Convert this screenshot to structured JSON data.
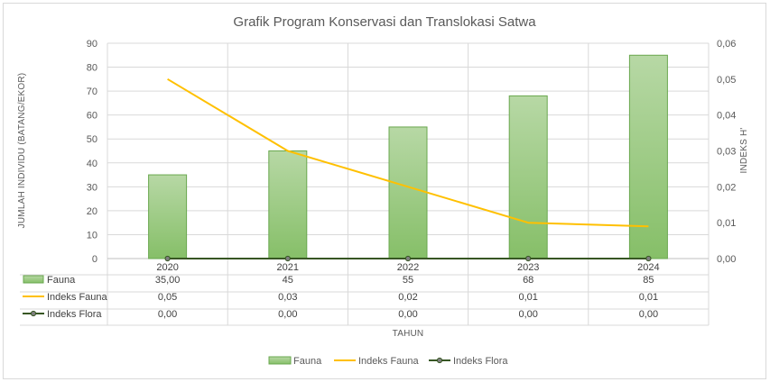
{
  "chart_data": {
    "type": "bar",
    "title": "Grafik Program Konservasi dan Translokasi Satwa",
    "xlabel": "TAHUN",
    "ylabel": "JUMLAH INDIVIDU (BATANG/EKOR)",
    "y2label": "INDEKS H'",
    "categories": [
      "2020",
      "2021",
      "2022",
      "2023",
      "2024"
    ],
    "ylim": [
      0,
      90
    ],
    "y_ticks": [
      "0",
      "10",
      "20",
      "30",
      "40",
      "50",
      "60",
      "70",
      "80",
      "90"
    ],
    "y2lim": [
      0,
      0.06
    ],
    "y2_ticks": [
      "0,00",
      "0,01",
      "0,02",
      "0,03",
      "0,04",
      "0,05",
      "0,06"
    ],
    "grid": true,
    "legend_position": "bottom",
    "series": [
      {
        "name": "Fauna",
        "kind": "bar",
        "axis": "left",
        "color": "#92c47c",
        "values": [
          35,
          45,
          55,
          68,
          85
        ],
        "table_labels": [
          "35,00",
          "45",
          "55",
          "68",
          "85"
        ]
      },
      {
        "name": "Indeks Fauna",
        "kind": "line",
        "axis": "right",
        "color": "#ffc000",
        "values": [
          0.05,
          0.03,
          0.02,
          0.01,
          0.009
        ],
        "table_labels": [
          "0,05",
          "0,03",
          "0,02",
          "0,01",
          "0,01"
        ]
      },
      {
        "name": "Indeks Flora",
        "kind": "line",
        "axis": "right",
        "color": "#375623",
        "marker": "circle",
        "values": [
          0,
          0,
          0,
          0,
          0
        ],
        "table_labels": [
          "0,00",
          "0,00",
          "0,00",
          "0,00",
          "0,00"
        ]
      }
    ]
  }
}
